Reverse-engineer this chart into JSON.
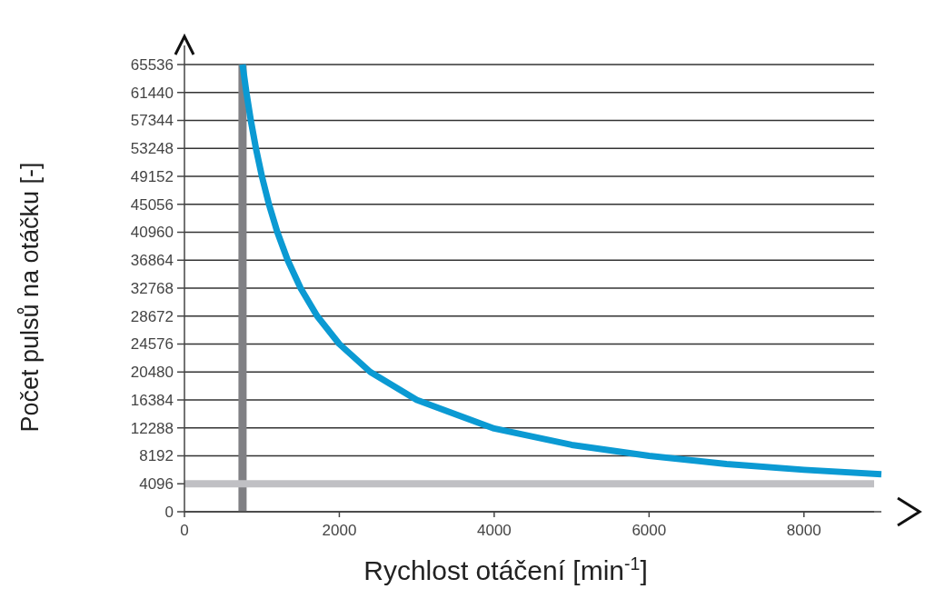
{
  "chart_data": {
    "type": "line",
    "xlabel": "Rychlost otáčení  [min$^{-1}$]",
    "ylabel": "Počet pulsů na otáčku [-]",
    "x": [
      750,
      800,
      857,
      923,
      1000,
      1091,
      1200,
      1333,
      1500,
      1714,
      2000,
      2400,
      3000,
      4000,
      5000,
      6000,
      7000,
      8000,
      9000
    ],
    "series": [
      {
        "color": "#0b9ad3",
        "values": [
          65536,
          61440,
          57344,
          53248,
          49152,
          45056,
          40960,
          36864,
          32768,
          28672,
          24576,
          20480,
          16384,
          12200,
          9800,
          8192,
          7000,
          6144,
          5500
        ]
      }
    ],
    "xlim": [
      0,
      9000
    ],
    "xticks": [
      0,
      2000,
      4000,
      6000,
      8000
    ],
    "ylim": [
      0,
      65536
    ],
    "yticks": [
      0,
      4096,
      8192,
      12288,
      16384,
      20480,
      24576,
      28672,
      32768,
      36864,
      40960,
      45056,
      49152,
      53248,
      57344,
      61440,
      65536
    ],
    "grid": "y",
    "marker": "none",
    "line_style": "solid",
    "ref_lines": [
      {
        "axis": "x",
        "value": 750,
        "color": "#808084"
      },
      {
        "axis": "y",
        "value": 4096,
        "color": "#c0c0c4"
      }
    ]
  }
}
